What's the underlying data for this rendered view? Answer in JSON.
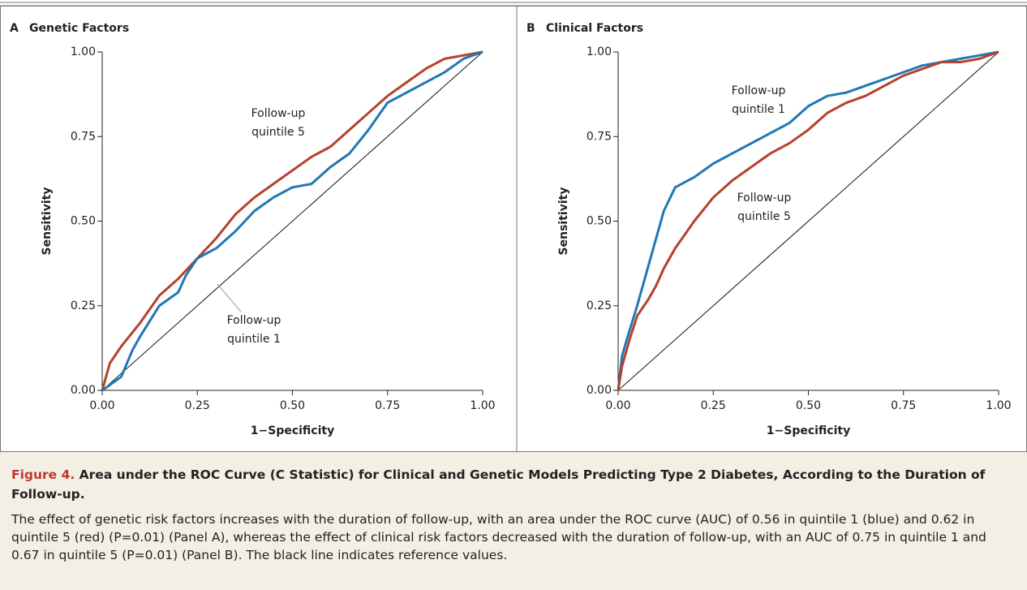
{
  "chart_data": [
    {
      "type": "line",
      "panel": "A",
      "title": "Genetic Factors",
      "xlabel": "1−Specificity",
      "ylabel": "Sensitivity",
      "xlim": [
        0,
        1
      ],
      "ylim": [
        0,
        1
      ],
      "xticks": [
        {
          "value": 0,
          "label": "0.00"
        },
        {
          "value": 0.25,
          "label": "0.25"
        },
        {
          "value": 0.5,
          "label": "0.50"
        },
        {
          "value": 0.75,
          "label": "0.75"
        },
        {
          "value": 1,
          "label": "1.00"
        }
      ],
      "yticks": [
        {
          "value": 0,
          "label": "0.00"
        },
        {
          "value": 0.25,
          "label": "0.25"
        },
        {
          "value": 0.5,
          "label": "0.50"
        },
        {
          "value": 0.75,
          "label": "0.75"
        },
        {
          "value": 1,
          "label": "1.00"
        }
      ],
      "annotations": [
        [
          "Follow-up",
          "quintile 5"
        ],
        [
          "Follow-up",
          "quintile 1"
        ]
      ],
      "series": [
        {
          "color": "#b5412b",
          "x": [
            0,
            0.02,
            0.05,
            0.1,
            0.15,
            0.2,
            0.25,
            0.3,
            0.35,
            0.4,
            0.45,
            0.5,
            0.55,
            0.6,
            0.65,
            0.7,
            0.75,
            0.8,
            0.85,
            0.9,
            0.95,
            1
          ],
          "values": [
            0,
            0.08,
            0.13,
            0.2,
            0.28,
            0.33,
            0.39,
            0.45,
            0.52,
            0.57,
            0.61,
            0.65,
            0.69,
            0.72,
            0.77,
            0.82,
            0.87,
            0.91,
            0.95,
            0.98,
            0.99,
            1
          ]
        },
        {
          "color": "#1f78b4",
          "x": [
            0,
            0.05,
            0.08,
            0.1,
            0.15,
            0.2,
            0.22,
            0.25,
            0.3,
            0.35,
            0.4,
            0.45,
            0.5,
            0.55,
            0.6,
            0.65,
            0.7,
            0.75,
            0.8,
            0.85,
            0.9,
            0.95,
            1
          ],
          "values": [
            0,
            0.04,
            0.12,
            0.16,
            0.25,
            0.29,
            0.34,
            0.39,
            0.42,
            0.47,
            0.53,
            0.57,
            0.6,
            0.61,
            0.66,
            0.7,
            0.77,
            0.85,
            0.88,
            0.91,
            0.94,
            0.98,
            1
          ]
        }
      ]
    },
    {
      "type": "line",
      "panel": "B",
      "title": "Clinical Factors",
      "xlabel": "1−Specificity",
      "ylabel": "Sensitivity",
      "xlim": [
        0,
        1
      ],
      "ylim": [
        0,
        1
      ],
      "xticks": [
        {
          "value": 0,
          "label": "0.00"
        },
        {
          "value": 0.25,
          "label": "0.25"
        },
        {
          "value": 0.5,
          "label": "0.50"
        },
        {
          "value": 0.75,
          "label": "0.75"
        },
        {
          "value": 1,
          "label": "1.00"
        }
      ],
      "yticks": [
        {
          "value": 0,
          "label": "0.00"
        },
        {
          "value": 0.25,
          "label": "0.25"
        },
        {
          "value": 0.5,
          "label": "0.50"
        },
        {
          "value": 0.75,
          "label": "0.75"
        },
        {
          "value": 1,
          "label": "1.00"
        }
      ],
      "annotations": [
        [
          "Follow-up",
          "quintile 1"
        ],
        [
          "Follow-up",
          "quintile 5"
        ]
      ],
      "series": [
        {
          "color": "#1f78b4",
          "x": [
            0,
            0.01,
            0.02,
            0.05,
            0.08,
            0.1,
            0.12,
            0.15,
            0.2,
            0.25,
            0.3,
            0.35,
            0.4,
            0.45,
            0.5,
            0.55,
            0.6,
            0.65,
            0.7,
            0.75,
            0.8,
            0.85,
            0.9,
            0.95,
            1
          ],
          "values": [
            0,
            0.1,
            0.14,
            0.25,
            0.37,
            0.45,
            0.53,
            0.6,
            0.63,
            0.67,
            0.7,
            0.73,
            0.76,
            0.79,
            0.84,
            0.87,
            0.88,
            0.9,
            0.92,
            0.94,
            0.96,
            0.97,
            0.98,
            0.99,
            1
          ]
        },
        {
          "color": "#b5412b",
          "x": [
            0,
            0.01,
            0.03,
            0.05,
            0.08,
            0.1,
            0.12,
            0.15,
            0.2,
            0.25,
            0.3,
            0.35,
            0.4,
            0.45,
            0.5,
            0.55,
            0.6,
            0.65,
            0.7,
            0.75,
            0.8,
            0.85,
            0.9,
            0.95,
            1
          ],
          "values": [
            0,
            0.07,
            0.15,
            0.22,
            0.27,
            0.31,
            0.36,
            0.42,
            0.5,
            0.57,
            0.62,
            0.66,
            0.7,
            0.73,
            0.77,
            0.82,
            0.85,
            0.87,
            0.9,
            0.93,
            0.95,
            0.97,
            0.97,
            0.98,
            1
          ]
        }
      ]
    }
  ],
  "caption": {
    "label": "Figure 4.",
    "title": "Area under the ROC Curve (C Statistic) for Clinical and Genetic Models Predicting Type 2 Diabetes, According to the Duration of Follow-up.",
    "body": "The effect of genetic risk factors increases with the duration of follow-up, with an area under the ROC curve (AUC) of 0.56 in quintile 1 (blue) and 0.62 in quintile 5 (red) (P=0.01) (Panel A), whereas the effect of clinical risk factors decreased with the duration of follow-up, with an AUC of 0.75 in quintile 1 and 0.67 in quintile 5 (P=0.01) (Panel B). The black line indicates reference values."
  }
}
